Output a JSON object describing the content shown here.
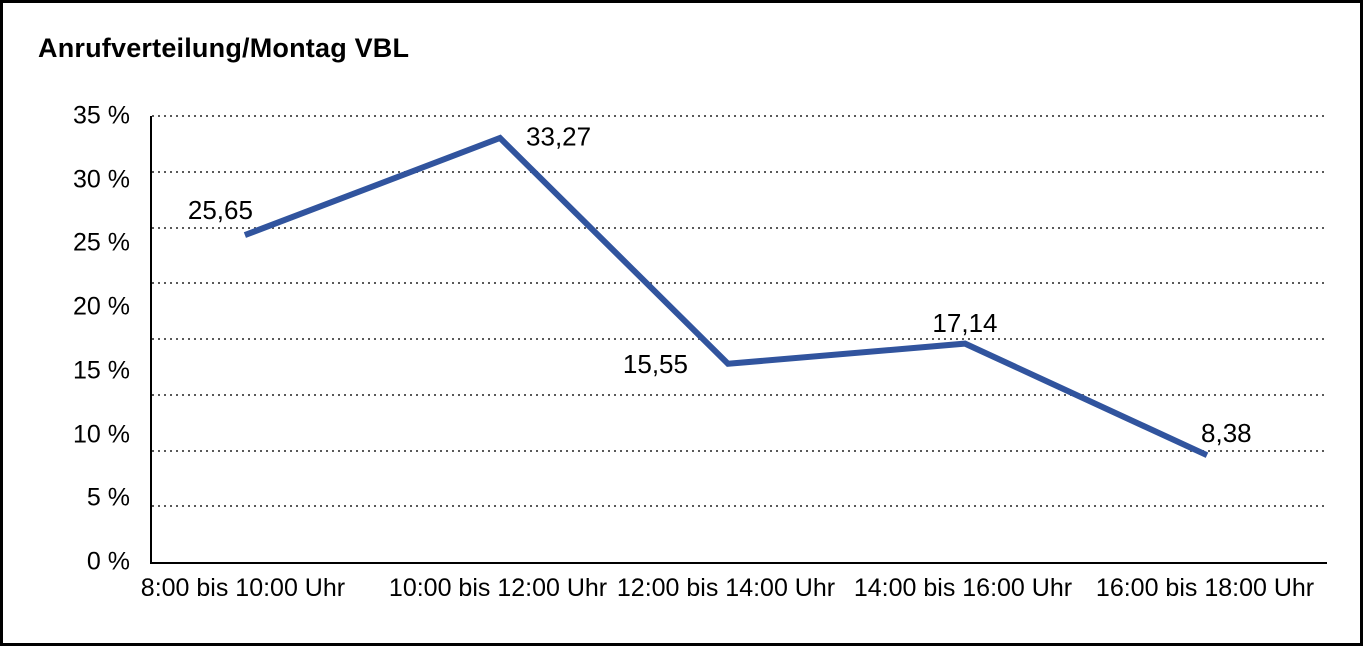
{
  "chart_data": {
    "type": "line",
    "title": "Anrufverteilung/Montag VBL",
    "categories": [
      "8:00 bis 10:00 Uhr",
      "10:00 bis 12:00 Uhr",
      "12:00 bis 14:00 Uhr",
      "14:00 bis 16:00 Uhr",
      "16:00 bis 18:00 Uhr"
    ],
    "values": [
      25.65,
      33.27,
      15.55,
      17.14,
      8.38
    ],
    "value_labels": [
      "25,65",
      "33,27",
      "15,55",
      "17,14",
      "8,38"
    ],
    "y_tick_labels": [
      "35 %",
      "30 %",
      "25 %",
      "20 %",
      "15 %",
      "10 %",
      "5 %",
      "0 %"
    ],
    "ylim": [
      0,
      35
    ],
    "xlabel": "",
    "ylabel": "",
    "legend": "none",
    "grid": "horizontal-dotted-8-divisions",
    "line_color": "#31549E",
    "axis_color": "#000000",
    "text_color": "#000000",
    "background_color": "#ffffff"
  }
}
